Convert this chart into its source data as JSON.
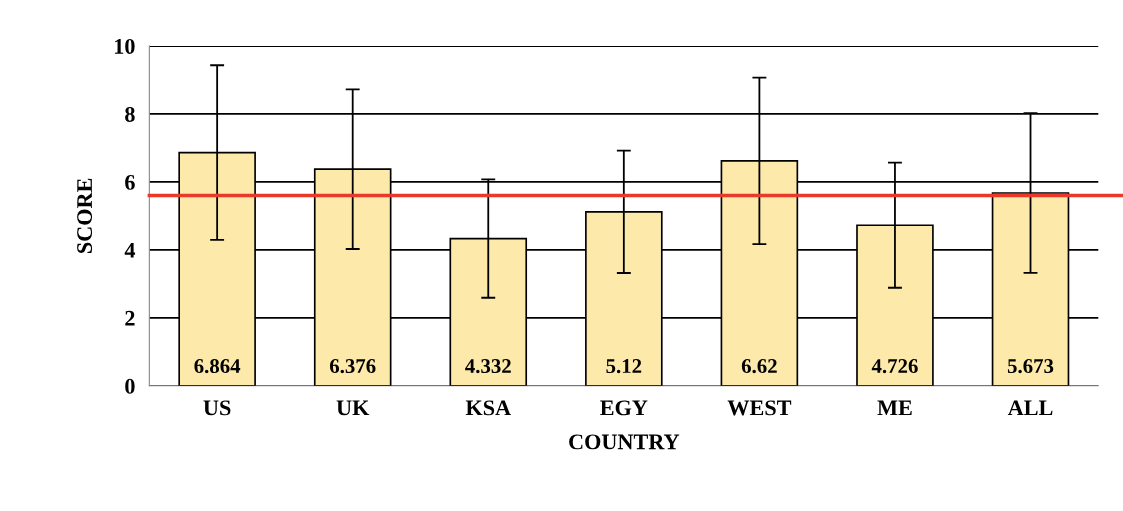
{
  "chart_data": {
    "type": "bar",
    "xlabel": "COUNTRY",
    "ylabel": "SCORE",
    "categories": [
      "US",
      "UK",
      "KSA",
      "EGY",
      "WEST",
      "ME",
      "ALL"
    ],
    "values": [
      6.864,
      6.376,
      4.332,
      5.12,
      6.62,
      4.726,
      5.673
    ],
    "errors": [
      2.57,
      2.35,
      1.74,
      1.8,
      2.45,
      1.84,
      2.35
    ],
    "color": "#fde9a9",
    "data_labels": true,
    "ylim": [
      0,
      10
    ],
    "yticks": [
      0,
      2,
      4,
      6,
      8,
      10
    ],
    "grid": "y",
    "ref_lines": [
      {
        "axis": "y",
        "value": 5.6,
        "color": "#e8392b"
      }
    ]
  }
}
